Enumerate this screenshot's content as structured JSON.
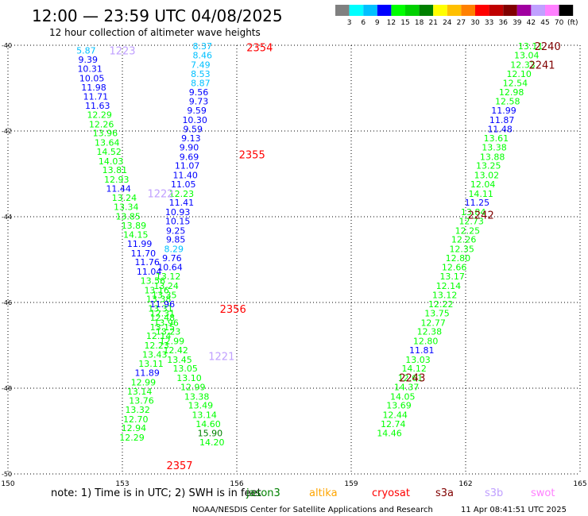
{
  "chart_data": {
    "type": "scatter",
    "title": "12:00 — 23:59 UTC 04/08/2025",
    "subtitle": "12 hour collection of altimeter wave heights",
    "units": "(ft)",
    "xlim": [
      150,
      165
    ],
    "ylim": [
      -50,
      -40
    ],
    "xticks": [
      "150",
      "153",
      "156",
      "159",
      "162",
      "165"
    ],
    "yticks": [
      "-40",
      "-42",
      "-44",
      "-46",
      "-48",
      "-50"
    ],
    "colorbar": {
      "labels": [
        "3",
        "6",
        "9",
        "12",
        "15",
        "18",
        "21",
        "24",
        "27",
        "30",
        "33",
        "36",
        "39",
        "42",
        "45",
        "70"
      ],
      "colors": [
        "#808080",
        "#00ffff",
        "#00c0ff",
        "#0000ff",
        "#00ff00",
        "#00d000",
        "#008000",
        "#ffff00",
        "#ffc000",
        "#ff8000",
        "#ff0000",
        "#c00000",
        "#800000",
        "#a000a0",
        "#c0a0ff",
        "#ff80ff",
        "#000000"
      ]
    },
    "passes": [
      {
        "label": "2354",
        "x": 156.6,
        "y": -40.05,
        "color": "#ff0000"
      },
      {
        "label": "2355",
        "x": 156.4,
        "y": -42.55,
        "color": "#ff0000"
      },
      {
        "label": "2356",
        "x": 155.9,
        "y": -46.15,
        "color": "#ff0000"
      },
      {
        "label": "2357",
        "x": 154.5,
        "y": -49.8,
        "color": "#ff0000"
      },
      {
        "label": "2240",
        "x": 164.15,
        "y": -40.02,
        "color": "#800000"
      },
      {
        "label": "2241",
        "x": 164.0,
        "y": -40.45,
        "color": "#800000"
      },
      {
        "label": "2242",
        "x": 162.4,
        "y": -43.95,
        "color": "#800000"
      },
      {
        "label": "2243",
        "x": 160.6,
        "y": -47.75,
        "color": "#800000"
      },
      {
        "label": "1223",
        "x": 153.0,
        "y": -40.12,
        "color": "#c0a0ff"
      },
      {
        "label": "1222",
        "x": 154.0,
        "y": -43.45,
        "color": "#c0a0ff"
      },
      {
        "label": "1221",
        "x": 155.6,
        "y": -47.25,
        "color": "#c0a0ff"
      }
    ],
    "tracks": [
      {
        "name": "track-a",
        "points": [
          {
            "x": 152.05,
            "y": -40.12,
            "v": "5.87",
            "c": "#00c0ff"
          },
          {
            "x": 152.1,
            "y": -40.33,
            "v": "9.39",
            "c": "#0000ff"
          },
          {
            "x": 152.15,
            "y": -40.55,
            "v": "10.31",
            "c": "#0000ff"
          },
          {
            "x": 152.2,
            "y": -40.77,
            "v": "10.05",
            "c": "#0000ff"
          },
          {
            "x": 152.25,
            "y": -40.98,
            "v": "11.98",
            "c": "#0000ff"
          },
          {
            "x": 152.3,
            "y": -41.19,
            "v": "11.71",
            "c": "#0000ff"
          },
          {
            "x": 152.35,
            "y": -41.41,
            "v": "11.63",
            "c": "#0000ff"
          },
          {
            "x": 152.4,
            "y": -41.62,
            "v": "12.29",
            "c": "#00ff00"
          },
          {
            "x": 152.45,
            "y": -41.84,
            "v": "12.26",
            "c": "#00ff00"
          },
          {
            "x": 152.55,
            "y": -42.05,
            "v": "13.96",
            "c": "#00ff00"
          },
          {
            "x": 152.6,
            "y": -42.27,
            "v": "13.64",
            "c": "#00ff00"
          },
          {
            "x": 152.65,
            "y": -42.48,
            "v": "14.52",
            "c": "#00ff00"
          },
          {
            "x": 152.7,
            "y": -42.7,
            "v": "14.03",
            "c": "#00ff00"
          },
          {
            "x": 152.8,
            "y": -42.91,
            "v": "13.81",
            "c": "#00ff00"
          },
          {
            "x": 152.85,
            "y": -43.13,
            "v": "12.93",
            "c": "#00ff00"
          },
          {
            "x": 152.9,
            "y": -43.34,
            "v": "11.44",
            "c": "#0000ff"
          },
          {
            "x": 153.05,
            "y": -43.56,
            "v": "13.24",
            "c": "#00ff00"
          },
          {
            "x": 153.1,
            "y": -43.77,
            "v": "13.34",
            "c": "#00ff00"
          },
          {
            "x": 153.15,
            "y": -43.99,
            "v": "13.85",
            "c": "#00ff00"
          },
          {
            "x": 153.3,
            "y": -44.2,
            "v": "13.89",
            "c": "#00ff00"
          },
          {
            "x": 153.35,
            "y": -44.42,
            "v": "14.15",
            "c": "#00ff00"
          },
          {
            "x": 153.45,
            "y": -44.63,
            "v": "11.99",
            "c": "#0000ff"
          },
          {
            "x": 153.55,
            "y": -44.85,
            "v": "11.70",
            "c": "#0000ff"
          },
          {
            "x": 153.65,
            "y": -45.06,
            "v": "11.76",
            "c": "#0000ff"
          },
          {
            "x": 153.7,
            "y": -45.28,
            "v": "11.04",
            "c": "#0000ff"
          },
          {
            "x": 153.8,
            "y": -45.49,
            "v": "13.56",
            "c": "#00ff00"
          },
          {
            "x": 153.9,
            "y": -45.71,
            "v": "13.16",
            "c": "#00ff00"
          },
          {
            "x": 153.95,
            "y": -45.92,
            "v": "13.38",
            "c": "#00ff00"
          },
          {
            "x": 154.0,
            "y": -46.14,
            "v": "13.31",
            "c": "#00ff00"
          },
          {
            "x": 154.05,
            "y": -46.35,
            "v": "12.48",
            "c": "#00ff00"
          },
          {
            "x": 154.05,
            "y": -46.57,
            "v": "13.15",
            "c": "#00ff00"
          },
          {
            "x": 153.95,
            "y": -46.78,
            "v": "12.14",
            "c": "#00ff00"
          },
          {
            "x": 153.9,
            "y": -47.0,
            "v": "12.23",
            "c": "#00ff00"
          },
          {
            "x": 153.85,
            "y": -47.21,
            "v": "13.43",
            "c": "#00ff00"
          },
          {
            "x": 153.75,
            "y": -47.43,
            "v": "13.11",
            "c": "#00ff00"
          },
          {
            "x": 153.65,
            "y": -47.64,
            "v": "11.89",
            "c": "#0000ff"
          },
          {
            "x": 153.55,
            "y": -47.86,
            "v": "12.99",
            "c": "#00ff00"
          },
          {
            "x": 153.45,
            "y": -48.07,
            "v": "13.14",
            "c": "#00ff00"
          },
          {
            "x": 153.5,
            "y": -48.29,
            "v": "13.76",
            "c": "#00ff00"
          },
          {
            "x": 153.4,
            "y": -48.5,
            "v": "13.32",
            "c": "#00ff00"
          },
          {
            "x": 153.35,
            "y": -48.72,
            "v": "12.70",
            "c": "#00ff00"
          },
          {
            "x": 153.3,
            "y": -48.93,
            "v": "12.94",
            "c": "#00ff00"
          },
          {
            "x": 153.25,
            "y": -49.15,
            "v": "12.29",
            "c": "#00ff00"
          }
        ]
      },
      {
        "name": "track-b",
        "points": [
          {
            "x": 155.1,
            "y": -40.02,
            "v": "8.37",
            "c": "#00c0ff"
          },
          {
            "x": 155.1,
            "y": -40.23,
            "v": "8.46",
            "c": "#00c0ff"
          },
          {
            "x": 155.05,
            "y": -40.45,
            "v": "7.49",
            "c": "#00c0ff"
          },
          {
            "x": 155.05,
            "y": -40.67,
            "v": "8.53",
            "c": "#00c0ff"
          },
          {
            "x": 155.05,
            "y": -40.88,
            "v": "8.87",
            "c": "#00c0ff"
          },
          {
            "x": 155.0,
            "y": -41.09,
            "v": "9.56",
            "c": "#0000ff"
          },
          {
            "x": 155.0,
            "y": -41.31,
            "v": "9.73",
            "c": "#0000ff"
          },
          {
            "x": 154.95,
            "y": -41.52,
            "v": "9.59",
            "c": "#0000ff"
          },
          {
            "x": 154.9,
            "y": -41.74,
            "v": "10.30",
            "c": "#0000ff"
          },
          {
            "x": 154.85,
            "y": -41.95,
            "v": "9.59",
            "c": "#0000ff"
          },
          {
            "x": 154.8,
            "y": -42.17,
            "v": "9.13",
            "c": "#0000ff"
          },
          {
            "x": 154.75,
            "y": -42.38,
            "v": "9.90",
            "c": "#0000ff"
          },
          {
            "x": 154.75,
            "y": -42.6,
            "v": "9.69",
            "c": "#0000ff"
          },
          {
            "x": 154.7,
            "y": -42.81,
            "v": "11.07",
            "c": "#0000ff"
          },
          {
            "x": 154.65,
            "y": -43.03,
            "v": "11.40",
            "c": "#0000ff"
          },
          {
            "x": 154.6,
            "y": -43.24,
            "v": "11.05",
            "c": "#0000ff"
          },
          {
            "x": 154.55,
            "y": -43.46,
            "v": "12.23",
            "c": "#00ff00"
          },
          {
            "x": 154.55,
            "y": -43.67,
            "v": "11.41",
            "c": "#0000ff"
          },
          {
            "x": 154.45,
            "y": -43.89,
            "v": "10.93",
            "c": "#0000ff"
          },
          {
            "x": 154.45,
            "y": -44.1,
            "v": "10.15",
            "c": "#0000ff"
          },
          {
            "x": 154.4,
            "y": -44.32,
            "v": "9.25",
            "c": "#0000ff"
          },
          {
            "x": 154.4,
            "y": -44.53,
            "v": "9.85",
            "c": "#0000ff"
          },
          {
            "x": 154.35,
            "y": -44.75,
            "v": "8.29",
            "c": "#00c0ff"
          },
          {
            "x": 154.3,
            "y": -44.96,
            "v": "9.76",
            "c": "#0000ff"
          },
          {
            "x": 154.25,
            "y": -45.18,
            "v": "10.64",
            "c": "#0000ff"
          },
          {
            "x": 154.2,
            "y": -45.39,
            "v": "13.12",
            "c": "#00ff00"
          },
          {
            "x": 154.15,
            "y": -45.61,
            "v": "13.24",
            "c": "#00ff00"
          },
          {
            "x": 154.1,
            "y": -45.82,
            "v": "13.35",
            "c": "#00ff00"
          },
          {
            "x": 154.05,
            "y": -46.04,
            "v": "11.96",
            "c": "#0000ff"
          },
          {
            "x": 154.05,
            "y": -46.25,
            "v": "12.31",
            "c": "#00ff00"
          },
          {
            "x": 154.15,
            "y": -46.47,
            "v": "13.96",
            "c": "#00ff00"
          },
          {
            "x": 154.2,
            "y": -46.68,
            "v": "13.23",
            "c": "#00ff00"
          },
          {
            "x": 154.3,
            "y": -46.9,
            "v": "12.99",
            "c": "#00ff00"
          },
          {
            "x": 154.4,
            "y": -47.11,
            "v": "12.42",
            "c": "#00ff00"
          },
          {
            "x": 154.5,
            "y": -47.33,
            "v": "13.45",
            "c": "#00ff00"
          },
          {
            "x": 154.65,
            "y": -47.54,
            "v": "13.05",
            "c": "#00ff00"
          },
          {
            "x": 154.75,
            "y": -47.76,
            "v": "13.10",
            "c": "#00ff00"
          },
          {
            "x": 154.85,
            "y": -47.97,
            "v": "12.99",
            "c": "#00ff00"
          },
          {
            "x": 154.95,
            "y": -48.19,
            "v": "13.38",
            "c": "#00ff00"
          },
          {
            "x": 155.05,
            "y": -48.4,
            "v": "13.49",
            "c": "#00ff00"
          },
          {
            "x": 155.15,
            "y": -48.62,
            "v": "13.14",
            "c": "#00ff00"
          },
          {
            "x": 155.25,
            "y": -48.83,
            "v": "14.60",
            "c": "#00ff00"
          },
          {
            "x": 155.3,
            "y": -49.05,
            "v": "15.90",
            "c": "#008000"
          },
          {
            "x": 155.35,
            "y": -49.26,
            "v": "14.20",
            "c": "#00ff00"
          }
        ]
      },
      {
        "name": "track-c",
        "points": [
          {
            "x": 163.7,
            "y": -40.02,
            "v": "13.11",
            "c": "#00ff00"
          },
          {
            "x": 163.6,
            "y": -40.23,
            "v": "13.04",
            "c": "#00ff00"
          },
          {
            "x": 163.5,
            "y": -40.45,
            "v": "12.33",
            "c": "#00ff00"
          },
          {
            "x": 163.4,
            "y": -40.67,
            "v": "12.10",
            "c": "#00ff00"
          },
          {
            "x": 163.3,
            "y": -40.88,
            "v": "12.54",
            "c": "#00ff00"
          },
          {
            "x": 163.2,
            "y": -41.09,
            "v": "12.98",
            "c": "#00ff00"
          },
          {
            "x": 163.1,
            "y": -41.31,
            "v": "12.58",
            "c": "#00ff00"
          },
          {
            "x": 163.0,
            "y": -41.52,
            "v": "11.99",
            "c": "#0000ff"
          },
          {
            "x": 162.95,
            "y": -41.74,
            "v": "11.87",
            "c": "#0000ff"
          },
          {
            "x": 162.9,
            "y": -41.95,
            "v": "11.48",
            "c": "#0000ff"
          },
          {
            "x": 162.8,
            "y": -42.17,
            "v": "13.61",
            "c": "#00ff00"
          },
          {
            "x": 162.75,
            "y": -42.38,
            "v": "13.38",
            "c": "#00ff00"
          },
          {
            "x": 162.7,
            "y": -42.6,
            "v": "13.88",
            "c": "#00ff00"
          },
          {
            "x": 162.6,
            "y": -42.81,
            "v": "13.25",
            "c": "#00ff00"
          },
          {
            "x": 162.55,
            "y": -43.03,
            "v": "13.02",
            "c": "#00ff00"
          },
          {
            "x": 162.45,
            "y": -43.24,
            "v": "12.04",
            "c": "#00ff00"
          },
          {
            "x": 162.4,
            "y": -43.46,
            "v": "14.11",
            "c": "#00ff00"
          },
          {
            "x": 162.3,
            "y": -43.67,
            "v": "11.25",
            "c": "#0000ff"
          },
          {
            "x": 162.2,
            "y": -43.89,
            "v": "13.84",
            "c": "#00ff00"
          },
          {
            "x": 162.15,
            "y": -44.1,
            "v": "12.73",
            "c": "#00ff00"
          },
          {
            "x": 162.05,
            "y": -44.32,
            "v": "12.25",
            "c": "#00ff00"
          },
          {
            "x": 161.95,
            "y": -44.53,
            "v": "12.26",
            "c": "#00ff00"
          },
          {
            "x": 161.9,
            "y": -44.75,
            "v": "12.35",
            "c": "#00ff00"
          },
          {
            "x": 161.8,
            "y": -44.96,
            "v": "12.80",
            "c": "#00ff00"
          },
          {
            "x": 161.7,
            "y": -45.18,
            "v": "12.66",
            "c": "#00ff00"
          },
          {
            "x": 161.65,
            "y": -45.39,
            "v": "13.17",
            "c": "#00ff00"
          },
          {
            "x": 161.55,
            "y": -45.61,
            "v": "12.14",
            "c": "#00ff00"
          },
          {
            "x": 161.45,
            "y": -45.82,
            "v": "13.12",
            "c": "#00ff00"
          },
          {
            "x": 161.35,
            "y": -46.04,
            "v": "12.22",
            "c": "#00ff00"
          },
          {
            "x": 161.25,
            "y": -46.25,
            "v": "13.75",
            "c": "#00ff00"
          },
          {
            "x": 161.15,
            "y": -46.47,
            "v": "12.77",
            "c": "#00ff00"
          },
          {
            "x": 161.05,
            "y": -46.68,
            "v": "12.38",
            "c": "#00ff00"
          },
          {
            "x": 160.95,
            "y": -46.9,
            "v": "12.80",
            "c": "#00ff00"
          },
          {
            "x": 160.85,
            "y": -47.11,
            "v": "11.81",
            "c": "#0000ff"
          },
          {
            "x": 160.75,
            "y": -47.33,
            "v": "13.03",
            "c": "#00ff00"
          },
          {
            "x": 160.65,
            "y": -47.54,
            "v": "14.12",
            "c": "#00ff00"
          },
          {
            "x": 160.55,
            "y": -47.76,
            "v": "12.61",
            "c": "#00ff00"
          },
          {
            "x": 160.45,
            "y": -47.97,
            "v": "14.37",
            "c": "#00ff00"
          },
          {
            "x": 160.35,
            "y": -48.19,
            "v": "14.05",
            "c": "#00ff00"
          },
          {
            "x": 160.25,
            "y": -48.4,
            "v": "13.69",
            "c": "#00ff00"
          },
          {
            "x": 160.15,
            "y": -48.62,
            "v": "12.44",
            "c": "#00ff00"
          },
          {
            "x": 160.1,
            "y": -48.83,
            "v": "12.74",
            "c": "#00ff00"
          },
          {
            "x": 160.0,
            "y": -49.05,
            "v": "14.46",
            "c": "#00ff00"
          }
        ]
      }
    ]
  },
  "footer": {
    "note": "note:  1) Time is in UTC; 2) SWH is in feet",
    "credit": "NOAA/NESDIS Center for Satellite Applications and Research",
    "timestamp": "11 Apr 08:41:51 UTC 2025",
    "satellites": [
      {
        "name": "jason3",
        "color": "#008000"
      },
      {
        "name": "altika",
        "color": "#ffa500"
      },
      {
        "name": "cryosat",
        "color": "#ff0000"
      },
      {
        "name": "s3a",
        "color": "#800000"
      },
      {
        "name": "s3b",
        "color": "#c0a0ff"
      },
      {
        "name": "swot",
        "color": "#ff80ff"
      }
    ]
  }
}
